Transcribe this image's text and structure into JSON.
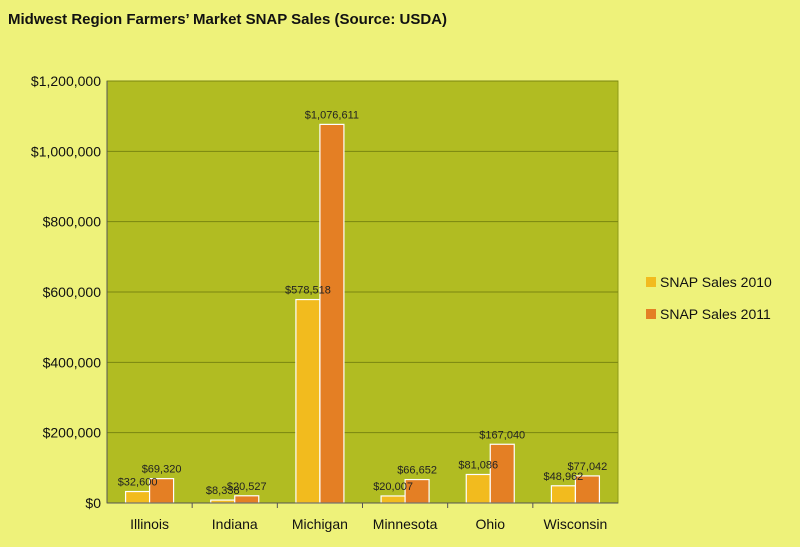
{
  "chart_data": {
    "type": "bar",
    "title": "Midwest Region Farmers’ Market SNAP Sales (Source: USDA)",
    "categories": [
      "Illinois",
      "Indiana",
      "Michigan",
      "Minnesota",
      "Ohio",
      "Wisconsin"
    ],
    "series": [
      {
        "name": "SNAP Sales 2010",
        "color": "#f2bb1e",
        "values": [
          32600,
          8338,
          578518,
          20007,
          81086,
          48962
        ],
        "labels": [
          "$32,600",
          "$8,338",
          "$578,518",
          "$20,007",
          "$81,086",
          "$48,962"
        ]
      },
      {
        "name": "SNAP Sales 2011",
        "color": "#e47f24",
        "values": [
          69320,
          20527,
          1076611,
          66652,
          167040,
          77042
        ],
        "labels": [
          "$69,320",
          "$20,527",
          "$1,076,611",
          "$66,652",
          "$167,040",
          "$77,042"
        ]
      }
    ],
    "ylim": [
      0,
      1200000
    ],
    "yticks": [
      0,
      200000,
      400000,
      600000,
      800000,
      1000000,
      1200000
    ],
    "ytick_labels": [
      "$0",
      "$200,000",
      "$400,000",
      "$600,000",
      "$800,000",
      "$1,000,000",
      "$1,200,000"
    ],
    "xlabel": "",
    "ylabel": "",
    "grid": true,
    "legend": "right",
    "plot_background": "#b1bc22"
  }
}
